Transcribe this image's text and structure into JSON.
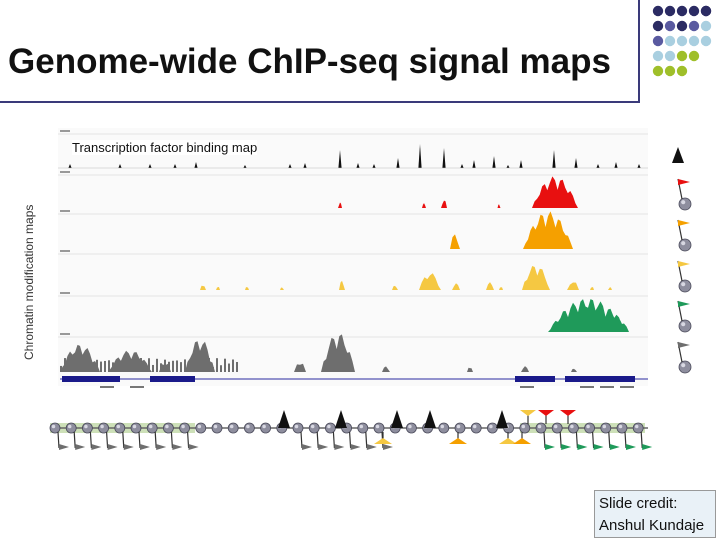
{
  "slide": {
    "title": "Genome-wide ChIP-seq signal maps",
    "tf_label": "Transcription factor binding map",
    "chromatin_label": "Chromatin modification maps",
    "credit_line1": "Slide credit:",
    "credit_line2": "Anshul Kundaje"
  },
  "colors": {
    "tf": "#111111",
    "track_red": "#e81010",
    "track_orange": "#f5a000",
    "track_yellow": "#f5c842",
    "track_green": "#1f9a5a",
    "track_gray": "#6e6e6e",
    "dot_navy": "#2b2b63",
    "dot_purple": "#5a5aa0",
    "dot_lightblue": "#a9cfe0",
    "dot_lime": "#9fbf2a",
    "nucleosome": "#8e8e9e",
    "dna_line": "#b8d39a"
  },
  "icons": [
    "dot-grid-icon",
    "nucleosome-flag-icon",
    "nucleosome-icon",
    "tf-triangle-icon"
  ]
}
